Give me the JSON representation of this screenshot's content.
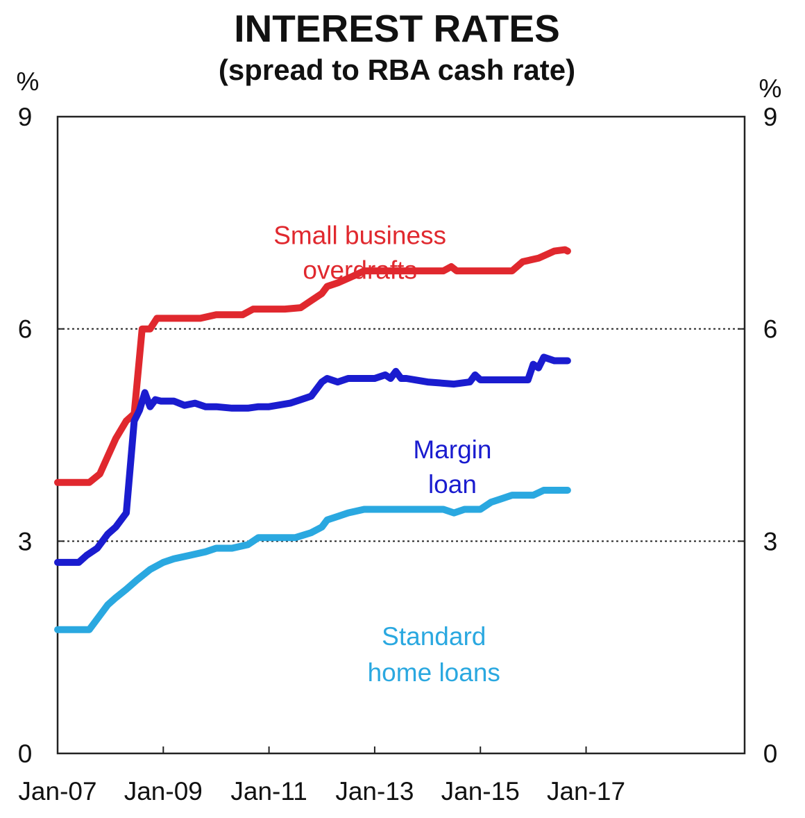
{
  "chart_data": {
    "type": "line",
    "title": "INTEREST RATES",
    "subtitle": "(spread to RBA cash rate)",
    "ylabel_left": "%",
    "ylabel_right": "%",
    "ylim": [
      0,
      9
    ],
    "yticks": [
      0,
      3,
      6,
      9
    ],
    "ytick_labels": [
      "0",
      "3",
      "6",
      "9"
    ],
    "xlim": [
      2007.0,
      2020.0
    ],
    "xticks": [
      2007,
      2009,
      2011,
      2013,
      2015,
      2017
    ],
    "xtick_labels": [
      "Jan-07",
      "Jan-09",
      "Jan-11",
      "Jan-13",
      "Jan-15",
      "Jan-17"
    ],
    "gridlines": [
      3,
      6
    ],
    "gridline_style": "dotted",
    "series": [
      {
        "name": "Small business overdrafts",
        "label_lines": [
          "Small business",
          "overdrafts"
        ],
        "color": "#e0282e",
        "x": [
          2007.0,
          2007.6,
          2007.8,
          2007.95,
          2008.1,
          2008.3,
          2008.45,
          2008.6,
          2008.75,
          2008.88,
          2009.05,
          2009.3,
          2009.7,
          2010.0,
          2010.25,
          2010.5,
          2010.7,
          2011.0,
          2011.3,
          2011.6,
          2011.8,
          2012.0,
          2012.1,
          2012.3,
          2012.6,
          2012.8,
          2013.0,
          2013.5,
          2014.0,
          2014.3,
          2014.45,
          2014.55,
          2015.0,
          2015.3,
          2015.6,
          2015.8,
          2016.1,
          2016.4,
          2016.6,
          2016.65
        ],
        "y": [
          3.83,
          3.83,
          3.95,
          4.2,
          4.45,
          4.7,
          4.8,
          6.0,
          6.0,
          6.15,
          6.15,
          6.15,
          6.15,
          6.2,
          6.2,
          6.2,
          6.28,
          6.28,
          6.28,
          6.3,
          6.4,
          6.5,
          6.6,
          6.65,
          6.75,
          6.82,
          6.82,
          6.82,
          6.82,
          6.82,
          6.88,
          6.82,
          6.82,
          6.82,
          6.82,
          6.95,
          7.0,
          7.1,
          7.12,
          7.1
        ]
      },
      {
        "name": "Margin loan",
        "label_lines": [
          "Margin",
          "loan"
        ],
        "color": "#1a1ccf",
        "x": [
          2007.0,
          2007.4,
          2007.55,
          2007.75,
          2007.95,
          2008.1,
          2008.3,
          2008.45,
          2008.55,
          2008.65,
          2008.75,
          2008.85,
          2008.95,
          2009.2,
          2009.4,
          2009.6,
          2009.8,
          2010.0,
          2010.3,
          2010.6,
          2010.8,
          2011.0,
          2011.4,
          2011.6,
          2011.8,
          2012.0,
          2012.1,
          2012.3,
          2012.5,
          2012.8,
          2013.0,
          2013.2,
          2013.3,
          2013.4,
          2013.5,
          2013.6,
          2014.0,
          2014.5,
          2014.8,
          2014.9,
          2015.0,
          2015.5,
          2015.75,
          2015.9,
          2016.0,
          2016.1,
          2016.2,
          2016.4,
          2016.65
        ],
        "y": [
          2.7,
          2.7,
          2.8,
          2.9,
          3.1,
          3.2,
          3.4,
          4.7,
          4.85,
          5.1,
          4.9,
          5.0,
          4.98,
          4.98,
          4.92,
          4.95,
          4.9,
          4.9,
          4.88,
          4.88,
          4.9,
          4.9,
          4.95,
          5.0,
          5.05,
          5.25,
          5.3,
          5.25,
          5.3,
          5.3,
          5.3,
          5.35,
          5.3,
          5.4,
          5.3,
          5.3,
          5.25,
          5.22,
          5.25,
          5.35,
          5.28,
          5.28,
          5.28,
          5.28,
          5.5,
          5.45,
          5.6,
          5.55,
          5.55
        ]
      },
      {
        "name": "Standard home loans",
        "label_lines": [
          "Standard",
          "home loans"
        ],
        "color": "#2aa8e0",
        "x": [
          2007.0,
          2007.6,
          2007.8,
          2007.95,
          2008.1,
          2008.3,
          2008.5,
          2008.75,
          2009.0,
          2009.2,
          2009.5,
          2009.8,
          2010.0,
          2010.3,
          2010.6,
          2010.8,
          2011.0,
          2011.5,
          2011.8,
          2012.0,
          2012.1,
          2012.3,
          2012.5,
          2012.8,
          2013.0,
          2013.5,
          2014.0,
          2014.3,
          2014.5,
          2014.7,
          2014.85,
          2015.0,
          2015.2,
          2015.4,
          2015.6,
          2015.8,
          2016.0,
          2016.2,
          2016.4,
          2016.65
        ],
        "y": [
          1.75,
          1.75,
          1.95,
          2.1,
          2.2,
          2.32,
          2.45,
          2.6,
          2.7,
          2.75,
          2.8,
          2.85,
          2.9,
          2.9,
          2.95,
          3.05,
          3.05,
          3.05,
          3.12,
          3.2,
          3.3,
          3.35,
          3.4,
          3.45,
          3.45,
          3.45,
          3.45,
          3.45,
          3.4,
          3.45,
          3.45,
          3.45,
          3.55,
          3.6,
          3.65,
          3.65,
          3.65,
          3.72,
          3.72,
          3.72
        ]
      }
    ]
  }
}
